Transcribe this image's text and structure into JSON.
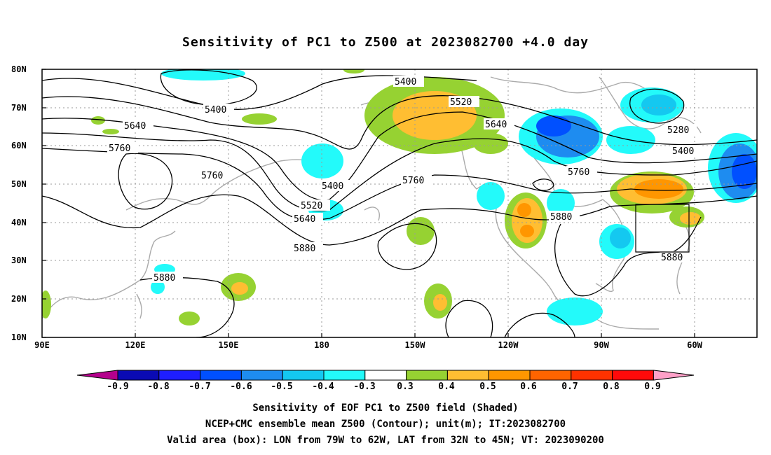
{
  "title": "Sensitivity of PC1 to Z500 at 2023082700 +4.0 day",
  "lat_labels": [
    "80N",
    "70N",
    "60N",
    "50N",
    "40N",
    "30N",
    "20N",
    "10N"
  ],
  "lon_labels": [
    "90E",
    "120E",
    "150E",
    "180",
    "150W",
    "120W",
    "90W",
    "60W"
  ],
  "contour_labels": [
    "5400",
    "5520",
    "5640",
    "5280",
    "5400",
    "5640",
    "5760",
    "5760",
    "5760",
    "5880",
    "5400",
    "5520",
    "5640",
    "5880",
    "5880",
    "5880",
    "5400",
    "5760"
  ],
  "colorbar": {
    "labels": [
      "-0.9",
      "-0.8",
      "-0.7",
      "-0.6",
      "-0.5",
      "-0.4",
      "-0.3",
      "0.3",
      "0.4",
      "0.5",
      "0.6",
      "0.7",
      "0.8",
      "0.9"
    ],
    "colors": [
      "#b4008c",
      "#0a0ab4",
      "#1e1eff",
      "#0050ff",
      "#1e8cf0",
      "#14c8f0",
      "#23fafa",
      "#ffffff",
      "#96d232",
      "#ffbe32",
      "#ff9600",
      "#ff6400",
      "#ff3200",
      "#ff0a0a",
      "#ffa0c8"
    ]
  },
  "footer": {
    "line1": "Sensitivity of EOF PC1 to Z500 field (Shaded)",
    "line2": "NCEP+CMC ensemble mean Z500 (Contour); unit(m); IT:2023082700",
    "line3": "Valid area (box): LON from 79W to 62W, LAT from 32N to 45N; VT: 2023090200"
  }
}
